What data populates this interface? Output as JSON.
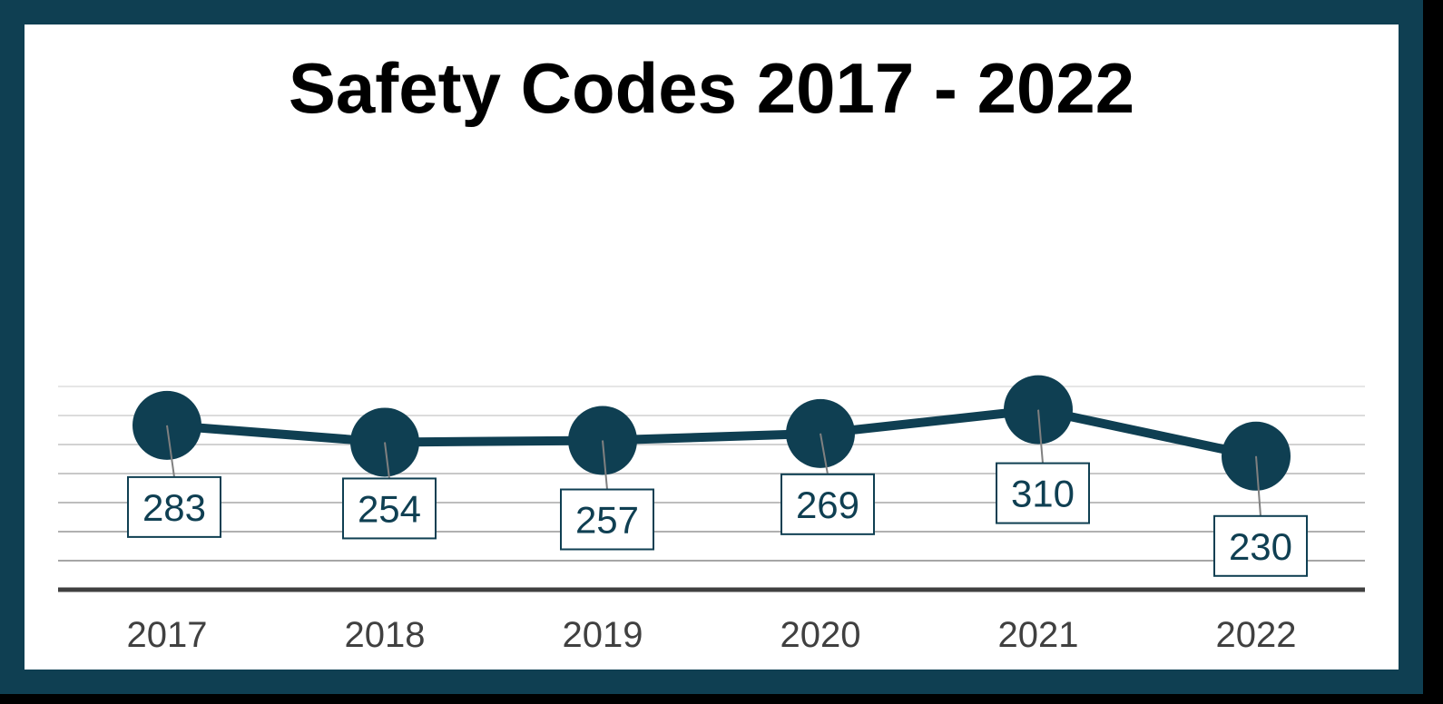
{
  "chart_data": {
    "type": "line",
    "title": "Safety Codes 2017 - 2022",
    "categories": [
      "2017",
      "2018",
      "2019",
      "2020",
      "2021",
      "2022"
    ],
    "series": [
      {
        "name": "Safety Codes",
        "values": [
          283,
          254,
          257,
          269,
          310,
          230
        ],
        "data_labels": [
          "283",
          "254",
          "257",
          "269",
          "310",
          "230"
        ]
      }
    ],
    "xlabel": "",
    "ylabel": "",
    "ylim": [
      0,
      350
    ],
    "gridlines": true,
    "legend": "none",
    "colors": {
      "frame": "#0f3f52",
      "series": "#0f3f52",
      "axis": "#404040",
      "grid": "#d9d9d9",
      "label_text": "#0f3f52",
      "tick_text": "#404040"
    }
  }
}
